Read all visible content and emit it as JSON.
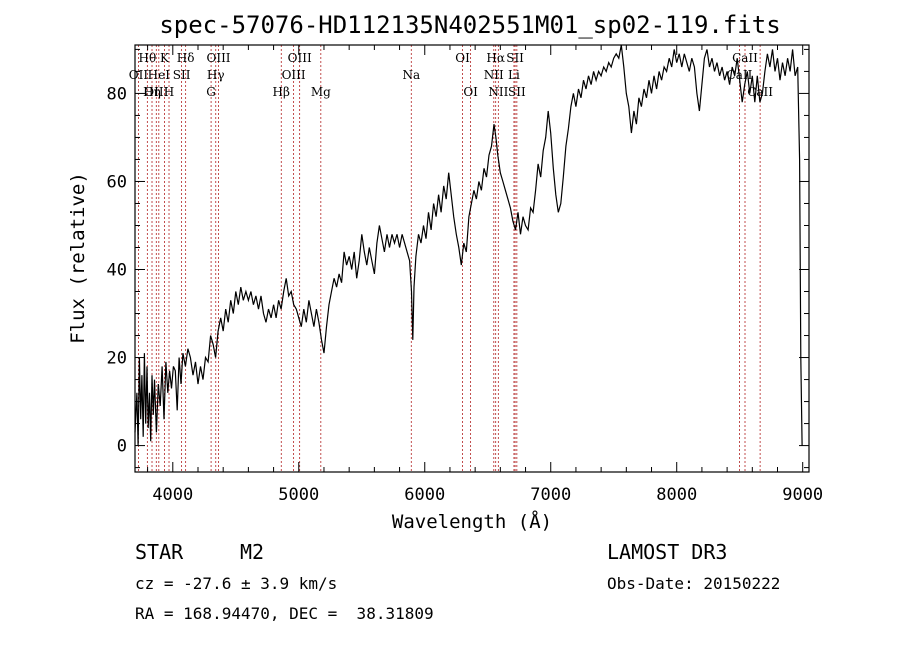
{
  "chart_data": {
    "type": "line",
    "title": "spec-57076-HD112135N402551M01_sp02-119.fits",
    "xlabel": "Wavelength (Å)",
    "ylabel": "Flux (relative)",
    "xlim": [
      3700,
      9050
    ],
    "ylim": [
      -6,
      91
    ],
    "x_ticks": [
      4000,
      5000,
      6000,
      7000,
      8000,
      9000
    ],
    "y_ticks": [
      0,
      20,
      40,
      60,
      80
    ],
    "grid": false,
    "series": [
      {
        "color": "#000000",
        "points": [
          [
            3700,
            3
          ],
          [
            3715,
            12
          ],
          [
            3725,
            0
          ],
          [
            3735,
            20
          ],
          [
            3745,
            6
          ],
          [
            3755,
            16
          ],
          [
            3765,
            2
          ],
          [
            3775,
            21
          ],
          [
            3785,
            5
          ],
          [
            3795,
            18
          ],
          [
            3805,
            4
          ],
          [
            3815,
            12
          ],
          [
            3825,
            1
          ],
          [
            3835,
            16
          ],
          [
            3845,
            7
          ],
          [
            3855,
            15
          ],
          [
            3870,
            3
          ],
          [
            3885,
            14
          ],
          [
            3900,
            9
          ],
          [
            3915,
            18
          ],
          [
            3930,
            6
          ],
          [
            3945,
            19
          ],
          [
            3960,
            12
          ],
          [
            3975,
            17
          ],
          [
            3990,
            13
          ],
          [
            4005,
            18
          ],
          [
            4020,
            17
          ],
          [
            4035,
            8
          ],
          [
            4050,
            20
          ],
          [
            4065,
            14
          ],
          [
            4080,
            21
          ],
          [
            4100,
            18
          ],
          [
            4120,
            22
          ],
          [
            4140,
            20
          ],
          [
            4160,
            16
          ],
          [
            4180,
            19
          ],
          [
            4200,
            14
          ],
          [
            4220,
            18
          ],
          [
            4240,
            15
          ],
          [
            4260,
            20
          ],
          [
            4280,
            19
          ],
          [
            4300,
            25
          ],
          [
            4320,
            23
          ],
          [
            4340,
            20
          ],
          [
            4360,
            26
          ],
          [
            4380,
            29
          ],
          [
            4400,
            26
          ],
          [
            4420,
            31
          ],
          [
            4440,
            28
          ],
          [
            4460,
            33
          ],
          [
            4480,
            30
          ],
          [
            4500,
            35
          ],
          [
            4520,
            32
          ],
          [
            4540,
            36
          ],
          [
            4560,
            33
          ],
          [
            4580,
            35
          ],
          [
            4600,
            33
          ],
          [
            4620,
            35
          ],
          [
            4640,
            32
          ],
          [
            4660,
            34
          ],
          [
            4680,
            31
          ],
          [
            4700,
            34
          ],
          [
            4720,
            30
          ],
          [
            4740,
            28
          ],
          [
            4760,
            31
          ],
          [
            4780,
            29
          ],
          [
            4800,
            32
          ],
          [
            4820,
            29
          ],
          [
            4840,
            33
          ],
          [
            4860,
            31
          ],
          [
            4880,
            35
          ],
          [
            4900,
            38
          ],
          [
            4920,
            34
          ],
          [
            4940,
            35
          ],
          [
            4960,
            32
          ],
          [
            4980,
            31
          ],
          [
            5000,
            29
          ],
          [
            5020,
            27
          ],
          [
            5040,
            31
          ],
          [
            5060,
            28
          ],
          [
            5080,
            33
          ],
          [
            5100,
            30
          ],
          [
            5120,
            27
          ],
          [
            5140,
            31
          ],
          [
            5160,
            28
          ],
          [
            5180,
            24
          ],
          [
            5200,
            21
          ],
          [
            5220,
            27
          ],
          [
            5240,
            32
          ],
          [
            5260,
            35
          ],
          [
            5280,
            38
          ],
          [
            5300,
            36
          ],
          [
            5320,
            39
          ],
          [
            5340,
            37
          ],
          [
            5360,
            44
          ],
          [
            5380,
            41
          ],
          [
            5400,
            43
          ],
          [
            5420,
            40
          ],
          [
            5440,
            44
          ],
          [
            5460,
            38
          ],
          [
            5480,
            42
          ],
          [
            5500,
            48
          ],
          [
            5520,
            44
          ],
          [
            5540,
            41
          ],
          [
            5560,
            45
          ],
          [
            5580,
            42
          ],
          [
            5600,
            39
          ],
          [
            5620,
            46
          ],
          [
            5640,
            50
          ],
          [
            5660,
            47
          ],
          [
            5680,
            44
          ],
          [
            5700,
            48
          ],
          [
            5720,
            45
          ],
          [
            5740,
            48
          ],
          [
            5760,
            46
          ],
          [
            5780,
            48
          ],
          [
            5800,
            45
          ],
          [
            5820,
            48
          ],
          [
            5840,
            46
          ],
          [
            5860,
            44
          ],
          [
            5880,
            42
          ],
          [
            5895,
            35
          ],
          [
            5905,
            24
          ],
          [
            5915,
            36
          ],
          [
            5930,
            43
          ],
          [
            5950,
            48
          ],
          [
            5970,
            46
          ],
          [
            5990,
            50
          ],
          [
            6010,
            47
          ],
          [
            6030,
            53
          ],
          [
            6050,
            49
          ],
          [
            6070,
            55
          ],
          [
            6090,
            52
          ],
          [
            6110,
            57
          ],
          [
            6130,
            53
          ],
          [
            6150,
            59
          ],
          [
            6170,
            56
          ],
          [
            6190,
            62
          ],
          [
            6210,
            57
          ],
          [
            6230,
            52
          ],
          [
            6250,
            48
          ],
          [
            6270,
            45
          ],
          [
            6290,
            41
          ],
          [
            6310,
            46
          ],
          [
            6330,
            44
          ],
          [
            6350,
            52
          ],
          [
            6370,
            55
          ],
          [
            6390,
            58
          ],
          [
            6410,
            56
          ],
          [
            6430,
            60
          ],
          [
            6450,
            58
          ],
          [
            6470,
            63
          ],
          [
            6490,
            61
          ],
          [
            6510,
            66
          ],
          [
            6530,
            68
          ],
          [
            6550,
            73
          ],
          [
            6565,
            70
          ],
          [
            6580,
            66
          ],
          [
            6600,
            62
          ],
          [
            6620,
            60
          ],
          [
            6640,
            58
          ],
          [
            6660,
            56
          ],
          [
            6680,
            54
          ],
          [
            6700,
            51
          ],
          [
            6720,
            49
          ],
          [
            6740,
            53
          ],
          [
            6760,
            48
          ],
          [
            6780,
            52
          ],
          [
            6800,
            50
          ],
          [
            6820,
            49
          ],
          [
            6840,
            54
          ],
          [
            6860,
            53
          ],
          [
            6880,
            58
          ],
          [
            6900,
            64
          ],
          [
            6920,
            61
          ],
          [
            6940,
            67
          ],
          [
            6960,
            70
          ],
          [
            6980,
            76
          ],
          [
            7000,
            71
          ],
          [
            7020,
            63
          ],
          [
            7040,
            57
          ],
          [
            7060,
            53
          ],
          [
            7080,
            55
          ],
          [
            7100,
            61
          ],
          [
            7120,
            68
          ],
          [
            7140,
            72
          ],
          [
            7160,
            77
          ],
          [
            7180,
            80
          ],
          [
            7200,
            77
          ],
          [
            7220,
            81
          ],
          [
            7240,
            79
          ],
          [
            7260,
            83
          ],
          [
            7280,
            81
          ],
          [
            7300,
            84
          ],
          [
            7320,
            82
          ],
          [
            7340,
            85
          ],
          [
            7360,
            83
          ],
          [
            7380,
            85
          ],
          [
            7400,
            84
          ],
          [
            7420,
            86
          ],
          [
            7440,
            85
          ],
          [
            7460,
            87
          ],
          [
            7480,
            86
          ],
          [
            7500,
            88
          ],
          [
            7520,
            89
          ],
          [
            7540,
            88
          ],
          [
            7560,
            91
          ],
          [
            7580,
            86
          ],
          [
            7600,
            80
          ],
          [
            7620,
            77
          ],
          [
            7640,
            71
          ],
          [
            7660,
            76
          ],
          [
            7680,
            73
          ],
          [
            7700,
            79
          ],
          [
            7720,
            77
          ],
          [
            7740,
            81
          ],
          [
            7760,
            79
          ],
          [
            7780,
            83
          ],
          [
            7800,
            80
          ],
          [
            7820,
            84
          ],
          [
            7840,
            81
          ],
          [
            7860,
            85
          ],
          [
            7880,
            83
          ],
          [
            7900,
            86
          ],
          [
            7920,
            85
          ],
          [
            7940,
            88
          ],
          [
            7960,
            86
          ],
          [
            7980,
            90
          ],
          [
            8000,
            87
          ],
          [
            8020,
            89
          ],
          [
            8040,
            86
          ],
          [
            8060,
            89
          ],
          [
            8080,
            87
          ],
          [
            8100,
            85
          ],
          [
            8120,
            88
          ],
          [
            8140,
            86
          ],
          [
            8160,
            80
          ],
          [
            8180,
            76
          ],
          [
            8200,
            82
          ],
          [
            8220,
            88
          ],
          [
            8240,
            90
          ],
          [
            8260,
            86
          ],
          [
            8280,
            88
          ],
          [
            8300,
            85
          ],
          [
            8320,
            87
          ],
          [
            8340,
            84
          ],
          [
            8360,
            86
          ],
          [
            8380,
            83
          ],
          [
            8400,
            85
          ],
          [
            8420,
            82
          ],
          [
            8440,
            86
          ],
          [
            8460,
            84
          ],
          [
            8480,
            88
          ],
          [
            8500,
            83
          ],
          [
            8520,
            78
          ],
          [
            8540,
            82
          ],
          [
            8560,
            85
          ],
          [
            8580,
            80
          ],
          [
            8600,
            84
          ],
          [
            8620,
            78
          ],
          [
            8640,
            84
          ],
          [
            8660,
            78
          ],
          [
            8680,
            80
          ],
          [
            8700,
            85
          ],
          [
            8720,
            89
          ],
          [
            8740,
            86
          ],
          [
            8760,
            90
          ],
          [
            8780,
            85
          ],
          [
            8800,
            88
          ],
          [
            8820,
            83
          ],
          [
            8840,
            87
          ],
          [
            8860,
            84
          ],
          [
            8880,
            88
          ],
          [
            8900,
            85
          ],
          [
            8920,
            90
          ],
          [
            8940,
            84
          ],
          [
            8960,
            86
          ],
          [
            8975,
            65
          ],
          [
            8985,
            20
          ],
          [
            8995,
            0
          ]
        ]
      }
    ],
    "annotations": [
      {
        "label": "Hθ",
        "x": 3798,
        "row": 1
      },
      {
        "label": "OII",
        "x": 3727,
        "row": 2
      },
      {
        "label": "OIII",
        "x": 3869,
        "row": 3
      },
      {
        "label": "Hη",
        "x": 3835,
        "row": 3
      },
      {
        "label": "K",
        "x": 3934,
        "row": 1
      },
      {
        "label": "HeI",
        "x": 3889,
        "row": 2
      },
      {
        "label": "H",
        "x": 3970,
        "row": 3
      },
      {
        "label": "Hδ",
        "x": 4102,
        "row": 1
      },
      {
        "label": "SII",
        "x": 4070,
        "row": 2
      },
      {
        "label": "OIII",
        "x": 4363,
        "row": 1
      },
      {
        "label": "Hγ",
        "x": 4341,
        "row": 2
      },
      {
        "label": "G",
        "x": 4304,
        "row": 3
      },
      {
        "label": "Hβ",
        "x": 4861,
        "row": 3
      },
      {
        "label": "OIII",
        "x": 5007,
        "row": 1
      },
      {
        "label": "OIII",
        "x": 4959,
        "row": 2
      },
      {
        "label": "Mg",
        "x": 5175,
        "row": 3
      },
      {
        "label": "Na",
        "x": 5893,
        "row": 2
      },
      {
        "label": "OI",
        "x": 6300,
        "row": 1
      },
      {
        "label": "OI",
        "x": 6364,
        "row": 3
      },
      {
        "label": "Hα",
        "x": 6563,
        "row": 1
      },
      {
        "label": "NII",
        "x": 6548,
        "row": 2
      },
      {
        "label": "NII",
        "x": 6584,
        "row": 3
      },
      {
        "label": "SII",
        "x": 6717,
        "row": 1
      },
      {
        "label": "Li",
        "x": 6708,
        "row": 2
      },
      {
        "label": "SII",
        "x": 6731,
        "row": 3
      },
      {
        "label": "CaII",
        "x": 8542,
        "row": 1
      },
      {
        "label": "CaII",
        "x": 8498,
        "row": 2
      },
      {
        "label": "CaII",
        "x": 8662,
        "row": 3
      }
    ],
    "line_markers": [
      3727,
      3798,
      3835,
      3869,
      3889,
      3934,
      3970,
      4070,
      4102,
      4304,
      4341,
      4363,
      4861,
      4959,
      5007,
      5175,
      5893,
      6300,
      6364,
      6548,
      6563,
      6584,
      6708,
      6717,
      6731,
      8498,
      8542,
      8662
    ]
  },
  "info": {
    "object_class": "STAR",
    "subclass": "M2",
    "survey": "LAMOST DR3",
    "cz": "cz = -27.6 ± 3.9 km/s",
    "obs_date": "Obs-Date: 20150222",
    "radec": "RA = 168.94470, DEC =  38.31809"
  },
  "colors": {
    "spectrum": "#000000",
    "line_markers": "#b22222"
  }
}
